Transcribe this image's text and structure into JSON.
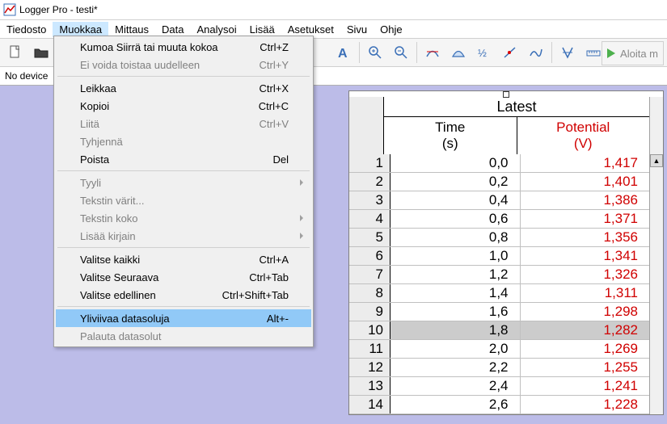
{
  "window": {
    "title": "Logger Pro - testi*"
  },
  "menubar": [
    "Tiedosto",
    "Muokkaa",
    "Mittaus",
    "Data",
    "Analysoi",
    "Lisää",
    "Asetukset",
    "Sivu",
    "Ohje"
  ],
  "menubar_active_index": 1,
  "dropdown": [
    {
      "label": "Kumoa Siirrä tai muuta kokoa",
      "accel": "Ctrl+Z",
      "disabled": false
    },
    {
      "label": "Ei voida toistaa uudelleen",
      "accel": "Ctrl+Y",
      "disabled": true
    },
    {
      "sep": true
    },
    {
      "label": "Leikkaa",
      "accel": "Ctrl+X"
    },
    {
      "label": "Kopioi",
      "accel": "Ctrl+C"
    },
    {
      "label": "Liitä",
      "accel": "Ctrl+V",
      "disabled": true
    },
    {
      "label": "Tyhjennä",
      "disabled": true
    },
    {
      "label": "Poista",
      "accel": "Del"
    },
    {
      "sep": true
    },
    {
      "label": "Tyyli",
      "disabled": true,
      "submenu": true
    },
    {
      "label": "Tekstin värit...",
      "disabled": true
    },
    {
      "label": "Tekstin koko",
      "disabled": true,
      "submenu": true
    },
    {
      "label": "Lisää kirjain",
      "disabled": true,
      "submenu": true
    },
    {
      "sep": true
    },
    {
      "label": "Valitse kaikki",
      "accel": "Ctrl+A"
    },
    {
      "label": "Valitse Seuraava",
      "accel": "Ctrl+Tab"
    },
    {
      "label": "Valitse edellinen",
      "accel": "Ctrl+Shift+Tab"
    },
    {
      "sep": true
    },
    {
      "label": "Yliviivaa datasoluja",
      "accel": "Alt+-",
      "highlight": true
    },
    {
      "label": "Palauta datasolut",
      "disabled": true
    }
  ],
  "status": {
    "no_device": "No device"
  },
  "play_label": "Aloita m",
  "table": {
    "super_header": "Latest",
    "columns": [
      {
        "name": "Time",
        "unit": "(s)",
        "color": "#000000"
      },
      {
        "name": "Potential",
        "unit": "(V)",
        "color": "#d00000"
      }
    ],
    "selected_row_index": 9,
    "rows": [
      {
        "n": 1,
        "time": "0,0",
        "pot": "1,417"
      },
      {
        "n": 2,
        "time": "0,2",
        "pot": "1,401"
      },
      {
        "n": 3,
        "time": "0,4",
        "pot": "1,386"
      },
      {
        "n": 4,
        "time": "0,6",
        "pot": "1,371"
      },
      {
        "n": 5,
        "time": "0,8",
        "pot": "1,356"
      },
      {
        "n": 6,
        "time": "1,0",
        "pot": "1,341"
      },
      {
        "n": 7,
        "time": "1,2",
        "pot": "1,326"
      },
      {
        "n": 8,
        "time": "1,4",
        "pot": "1,311"
      },
      {
        "n": 9,
        "time": "1,6",
        "pot": "1,298"
      },
      {
        "n": 10,
        "time": "1,8",
        "pot": "1,282"
      },
      {
        "n": 11,
        "time": "2,0",
        "pot": "1,269"
      },
      {
        "n": 12,
        "time": "2,2",
        "pot": "1,255"
      },
      {
        "n": 13,
        "time": "2,4",
        "pot": "1,241"
      },
      {
        "n": 14,
        "time": "2,6",
        "pot": "1,228"
      }
    ]
  },
  "colors": {
    "workspace_bg": "#bcbce8",
    "menu_highlight": "#91c9f7",
    "tool_icon": "#3a6fb7"
  }
}
